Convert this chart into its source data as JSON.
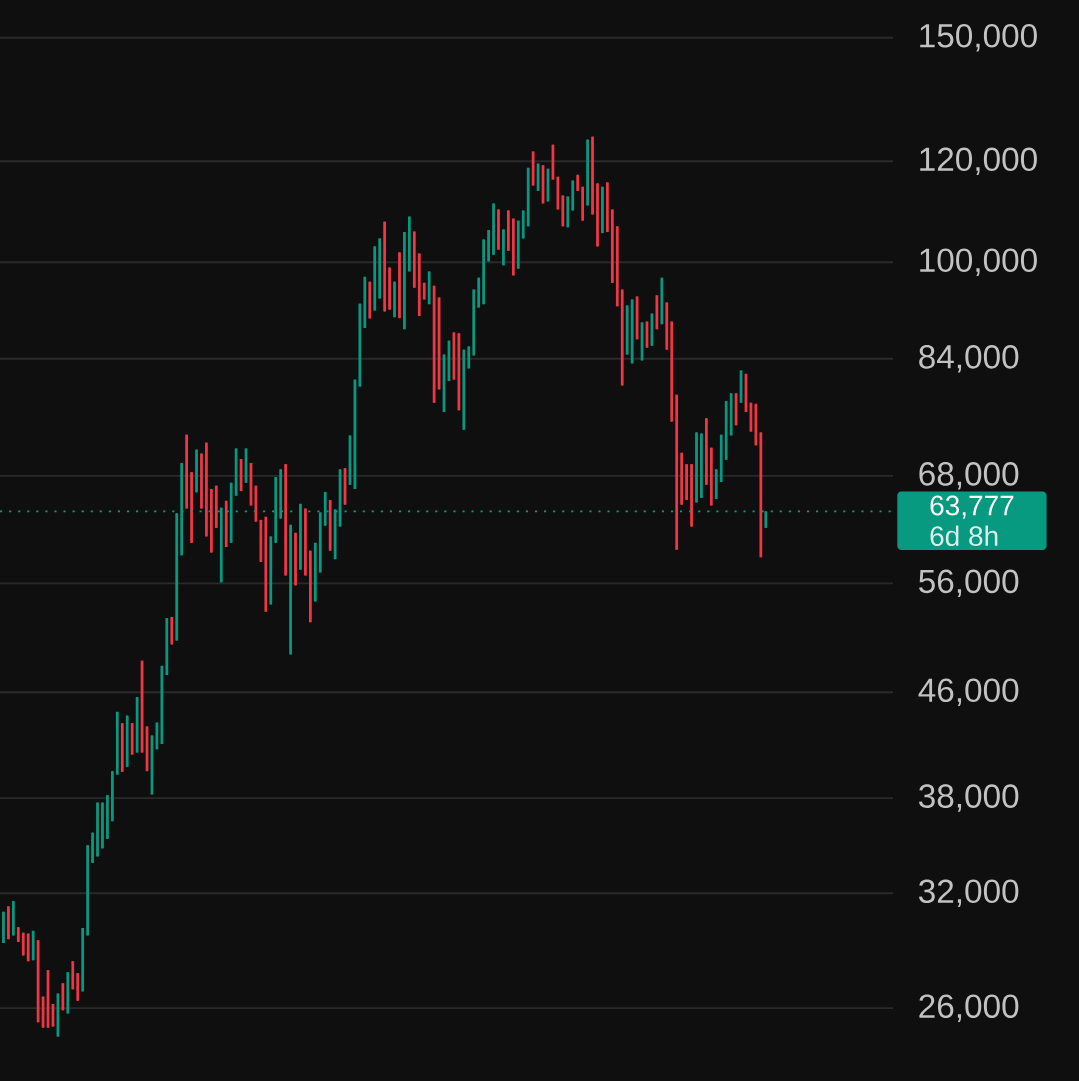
{
  "chart_data": {
    "type": "candlestick",
    "categories": [
      null,
      null,
      null,
      null,
      null,
      null,
      null,
      null,
      null,
      null,
      null,
      null,
      null,
      null,
      null,
      null,
      null,
      null,
      null,
      null,
      null,
      null,
      null,
      null,
      null,
      null,
      null,
      null,
      null,
      null,
      null,
      null,
      null,
      null,
      null,
      null,
      null,
      null,
      null,
      null,
      null,
      null,
      null,
      null,
      null,
      null,
      null,
      null,
      null,
      null,
      null,
      null,
      null,
      null,
      null,
      null,
      null,
      null,
      null,
      null,
      null,
      null,
      null,
      null,
      null,
      null,
      null,
      null,
      null,
      null,
      null,
      null,
      null,
      null,
      null,
      null,
      null,
      null,
      null,
      null,
      null,
      null,
      null,
      null,
      null,
      null,
      null,
      null,
      null,
      null,
      null,
      null,
      null,
      null,
      null,
      null,
      null,
      null,
      null,
      null,
      null,
      null,
      null,
      null,
      null,
      null,
      null,
      null,
      null,
      null,
      null,
      null,
      null,
      null,
      null,
      null,
      null,
      null,
      null,
      null,
      null,
      null,
      null,
      null,
      null,
      null,
      null,
      null,
      null,
      null,
      null,
      null,
      null,
      null,
      null,
      null,
      null,
      null,
      null,
      null,
      null,
      null,
      null,
      null,
      null,
      null,
      null,
      null,
      null,
      null,
      null,
      null,
      null,
      null,
      null
    ],
    "ohlc": [
      [
        29250,
        30950,
        29250,
        30950
      ],
      [
        31250,
        31250,
        29450,
        29450
      ],
      [
        29650,
        31550,
        29650,
        31550
      ],
      [
        30100,
        30100,
        29300,
        29300
      ],
      [
        29800,
        29800,
        28600,
        28600
      ],
      [
        29750,
        29750,
        28300,
        28300
      ],
      [
        28350,
        29900,
        28350,
        29900
      ],
      [
        29400,
        29400,
        25350,
        25350
      ],
      [
        26550,
        26550,
        25100,
        25100
      ],
      [
        27850,
        27850,
        25100,
        25100
      ],
      [
        26200,
        26200,
        25150,
        25150
      ],
      [
        24700,
        26700,
        24700,
        26700
      ],
      [
        27200,
        27200,
        25900,
        25900
      ],
      [
        25750,
        27750,
        25750,
        27750
      ],
      [
        28300,
        28300,
        26900,
        26900
      ],
      [
        27700,
        27700,
        26350,
        26350
      ],
      [
        26800,
        30050,
        26800,
        30050
      ],
      [
        29650,
        34900,
        29650,
        34900
      ],
      [
        33800,
        35700,
        33800,
        35700
      ],
      [
        34200,
        37700,
        34200,
        37700
      ],
      [
        34700,
        37700,
        34700,
        37700
      ],
      [
        35300,
        38200,
        35300,
        38200
      ],
      [
        36450,
        39900,
        36450,
        39900
      ],
      [
        39650,
        44400,
        39650,
        44400
      ],
      [
        43500,
        43500,
        39850,
        39850
      ],
      [
        40200,
        44100,
        40200,
        44100
      ],
      [
        43500,
        43500,
        41100,
        41100
      ],
      [
        41250,
        45600,
        41250,
        45600
      ],
      [
        48700,
        48700,
        41250,
        41250
      ],
      [
        43250,
        43250,
        39900,
        39900
      ],
      [
        38250,
        42550,
        38250,
        42550
      ],
      [
        41500,
        43550,
        41500,
        43550
      ],
      [
        41900,
        48250,
        41900,
        48250
      ],
      [
        47450,
        52600,
        47450,
        52600
      ],
      [
        52700,
        52700,
        50150,
        50150
      ],
      [
        50500,
        63550,
        50500,
        63550
      ],
      [
        58900,
        69600,
        58900,
        69600
      ],
      [
        73250,
        73250,
        64100,
        64100
      ],
      [
        68450,
        68450,
        60250,
        60250
      ],
      [
        66000,
        71300,
        66000,
        71300
      ],
      [
        70800,
        70800,
        64100,
        64100
      ],
      [
        72200,
        72200,
        60950,
        60950
      ],
      [
        66400,
        66400,
        59200,
        59200
      ],
      [
        66800,
        66800,
        61900,
        61900
      ],
      [
        56100,
        64200,
        56100,
        64200
      ],
      [
        65000,
        65000,
        59800,
        59800
      ],
      [
        60250,
        67150,
        60250,
        67150
      ],
      [
        65600,
        71450,
        65600,
        71450
      ],
      [
        70100,
        70100,
        66150,
        66150
      ],
      [
        67150,
        71450,
        67150,
        71450
      ],
      [
        69600,
        69600,
        64450,
        64450
      ],
      [
        66800,
        66800,
        62600,
        62600
      ],
      [
        62800,
        62800,
        58200,
        58200
      ],
      [
        63150,
        63150,
        53200,
        53200
      ],
      [
        53900,
        60950,
        53900,
        60950
      ],
      [
        60250,
        67850,
        60250,
        67850
      ],
      [
        62950,
        68800,
        62950,
        68800
      ],
      [
        69450,
        69450,
        56800,
        56800
      ],
      [
        49250,
        62250,
        49250,
        62250
      ],
      [
        61350,
        61350,
        55800,
        55800
      ],
      [
        57400,
        64650,
        57400,
        64650
      ],
      [
        64100,
        64100,
        56800,
        56800
      ],
      [
        59400,
        59400,
        52200,
        52200
      ],
      [
        54200,
        60250,
        54200,
        60250
      ],
      [
        57100,
        63650,
        57100,
        63650
      ],
      [
        62150,
        66050,
        62150,
        66050
      ],
      [
        65100,
        65100,
        59400,
        59400
      ],
      [
        58500,
        64000,
        58500,
        64000
      ],
      [
        62050,
        68800,
        62050,
        68800
      ],
      [
        68950,
        68950,
        64550,
        64550
      ],
      [
        66900,
        73150,
        66900,
        73150
      ],
      [
        66400,
        80900,
        66400,
        80900
      ],
      [
        79900,
        92800,
        79900,
        92800
      ],
      [
        88800,
        97400,
        88800,
        97400
      ],
      [
        96550,
        96550,
        90350,
        90350
      ],
      [
        91650,
        102900,
        91650,
        102900
      ],
      [
        93650,
        104400,
        93650,
        104400
      ],
      [
        107600,
        107600,
        91500,
        91500
      ],
      [
        99050,
        99050,
        91800,
        91800
      ],
      [
        90550,
        96550,
        90550,
        96550
      ],
      [
        101800,
        101800,
        90400,
        90400
      ],
      [
        88600,
        105600,
        88600,
        105600
      ],
      [
        98350,
        108600,
        98350,
        108600
      ],
      [
        105700,
        105700,
        95500,
        95500
      ],
      [
        101600,
        101600,
        90750,
        90750
      ],
      [
        96350,
        96350,
        93500,
        93500
      ],
      [
        92700,
        98350,
        92700,
        98350
      ],
      [
        95850,
        95850,
        77600,
        77600
      ],
      [
        93850,
        93850,
        79500,
        79500
      ],
      [
        76300,
        84650,
        76300,
        84650
      ],
      [
        80700,
        86800,
        80700,
        86800
      ],
      [
        88100,
        88100,
        80900,
        80900
      ],
      [
        87950,
        87950,
        76550,
        76550
      ],
      [
        73900,
        85400,
        73900,
        85400
      ],
      [
        82550,
        85900,
        82550,
        85900
      ],
      [
        84500,
        95200,
        84500,
        95200
      ],
      [
        92150,
        97250,
        92150,
        97250
      ],
      [
        92700,
        104200,
        92700,
        104200
      ],
      [
        100150,
        106000,
        100150,
        106000
      ],
      [
        101350,
        111200,
        101350,
        111200
      ],
      [
        110000,
        110000,
        102300,
        102300
      ],
      [
        99450,
        106100,
        99450,
        106100
      ],
      [
        109800,
        109800,
        102100,
        102100
      ],
      [
        108200,
        108200,
        97650,
        97650
      ],
      [
        98850,
        107800,
        98850,
        107800
      ],
      [
        104400,
        109800,
        104400,
        109800
      ],
      [
        106700,
        118600,
        106700,
        118600
      ],
      [
        122150,
        122150,
        114850,
        114850
      ],
      [
        113750,
        119500,
        113750,
        119500
      ],
      [
        119150,
        119150,
        111200,
        111200
      ],
      [
        111600,
        118400,
        111600,
        118400
      ],
      [
        123650,
        123650,
        116100,
        116100
      ],
      [
        116700,
        116700,
        110000,
        110000
      ],
      [
        112800,
        112800,
        106700,
        106700
      ],
      [
        106500,
        112600,
        106500,
        112600
      ],
      [
        109800,
        115900,
        109800,
        115900
      ],
      [
        117100,
        117100,
        113750,
        113750
      ],
      [
        114600,
        114600,
        107800,
        107800
      ],
      [
        110800,
        124800,
        110800,
        124800
      ],
      [
        125450,
        125450,
        109000,
        109000
      ],
      [
        115300,
        115300,
        102900,
        102900
      ],
      [
        105400,
        114600,
        105400,
        114600
      ],
      [
        115500,
        115500,
        105600,
        105600
      ],
      [
        110000,
        110000,
        96350,
        96350
      ],
      [
        106700,
        106700,
        92350,
        92350
      ],
      [
        95200,
        95200,
        80050,
        80050
      ],
      [
        84650,
        92500,
        84650,
        92500
      ],
      [
        83300,
        93500,
        83300,
        93500
      ],
      [
        94000,
        94000,
        87000,
        87000
      ],
      [
        83750,
        89700,
        83750,
        89700
      ],
      [
        89850,
        89850,
        85700,
        85700
      ],
      [
        86000,
        91150,
        86000,
        91150
      ],
      [
        94200,
        94200,
        88600,
        88600
      ],
      [
        89400,
        97250,
        89400,
        97250
      ],
      [
        93000,
        93000,
        85400,
        85400
      ],
      [
        89850,
        89850,
        75000,
        75000
      ],
      [
        78750,
        78750,
        59500,
        59500
      ],
      [
        70900,
        70900,
        64550,
        64550
      ],
      [
        69450,
        69450,
        65100,
        65100
      ],
      [
        69450,
        69450,
        62050,
        62050
      ],
      [
        64800,
        73550,
        64800,
        73550
      ],
      [
        65350,
        73400,
        65350,
        73400
      ],
      [
        75450,
        75450,
        66900,
        66900
      ],
      [
        71550,
        71550,
        64450,
        64450
      ],
      [
        65200,
        68800,
        65200,
        68800
      ],
      [
        67250,
        73250,
        67250,
        73250
      ],
      [
        70000,
        77850,
        70000,
        77850
      ],
      [
        73150,
        78950,
        73150,
        78950
      ],
      [
        78950,
        78950,
        74500,
        74500
      ],
      [
        77600,
        82250,
        77600,
        82250
      ],
      [
        81750,
        81750,
        76300,
        76300
      ],
      [
        77600,
        77600,
        73650,
        73650
      ],
      [
        77450,
        77450,
        71850,
        71850
      ],
      [
        73550,
        73550,
        58700,
        58700
      ],
      [
        61900,
        63777,
        61900,
        63777
      ]
    ],
    "colors": [
      "#089981",
      "#f23645",
      "#089981",
      "#f23645",
      "#f23645",
      "#f23645",
      "#089981",
      "#f23645",
      "#f23645",
      "#f23645",
      "#f23645",
      "#089981",
      "#f23645",
      "#089981",
      "#f23645",
      "#f23645",
      "#089981",
      "#089981",
      "#089981",
      "#089981",
      "#089981",
      "#089981",
      "#089981",
      "#089981",
      "#f23645",
      "#089981",
      "#f23645",
      "#089981",
      "#f23645",
      "#f23645",
      "#089981",
      "#089981",
      "#089981",
      "#089981",
      "#f23645",
      "#089981",
      "#089981",
      "#f23645",
      "#f23645",
      "#089981",
      "#f23645",
      "#f23645",
      "#f23645",
      "#f23645",
      "#089981",
      "#f23645",
      "#089981",
      "#089981",
      "#f23645",
      "#089981",
      "#f23645",
      "#f23645",
      "#f23645",
      "#f23645",
      "#089981",
      "#089981",
      "#089981",
      "#f23645",
      "#089981",
      "#f23645",
      "#089981",
      "#f23645",
      "#f23645",
      "#089981",
      "#089981",
      "#089981",
      "#f23645",
      "#089981",
      "#089981",
      "#f23645",
      "#089981",
      "#089981",
      "#089981",
      "#089981",
      "#f23645",
      "#089981",
      "#089981",
      "#f23645",
      "#f23645",
      "#089981",
      "#f23645",
      "#089981",
      "#089981",
      "#f23645",
      "#f23645",
      "#f23645",
      "#089981",
      "#f23645",
      "#f23645",
      "#089981",
      "#089981",
      "#f23645",
      "#f23645",
      "#089981",
      "#089981",
      "#089981",
      "#089981",
      "#089981",
      "#089981",
      "#089981",
      "#f23645",
      "#089981",
      "#f23645",
      "#f23645",
      "#089981",
      "#089981",
      "#089981",
      "#f23645",
      "#089981",
      "#f23645",
      "#089981",
      "#f23645",
      "#f23645",
      "#f23645",
      "#089981",
      "#089981",
      "#f23645",
      "#f23645",
      "#089981",
      "#f23645",
      "#f23645",
      "#089981",
      "#f23645",
      "#f23645",
      "#f23645",
      "#f23645",
      "#089981",
      "#089981",
      "#f23645",
      "#089981",
      "#f23645",
      "#089981",
      "#f23645",
      "#089981",
      "#f23645",
      "#f23645",
      "#f23645",
      "#f23645",
      "#f23645",
      "#f23645",
      "#089981",
      "#089981",
      "#f23645",
      "#f23645",
      "#089981",
      "#089981",
      "#089981",
      "#089981",
      "#f23645",
      "#089981",
      "#f23645",
      "#f23645",
      "#f23645",
      "#f23645",
      "#089981"
    ],
    "ylim": [
      22800,
      160600
    ],
    "yticks": [
      {
        "value": 26000,
        "label": "26,000"
      },
      {
        "value": 32000,
        "label": "32,000"
      },
      {
        "value": 38000,
        "label": "38,000"
      },
      {
        "value": 46000,
        "label": "46,000"
      },
      {
        "value": 56000,
        "label": "56,000"
      },
      {
        "value": 68000,
        "label": "68,000"
      },
      {
        "value": 84000,
        "label": "84,000"
      },
      {
        "value": 100000,
        "label": "100,000"
      },
      {
        "value": 120000,
        "label": "120,000"
      },
      {
        "value": 150000,
        "label": "150,000"
      }
    ],
    "log": true,
    "grid": "y",
    "tick_labels": "y",
    "ref_lines": [
      {
        "axis": "y",
        "value": 63777,
        "label": "63,777",
        "color": "#089981",
        "line_style": "dotted"
      }
    ],
    "annotations": [
      "6d 8h"
    ]
  }
}
